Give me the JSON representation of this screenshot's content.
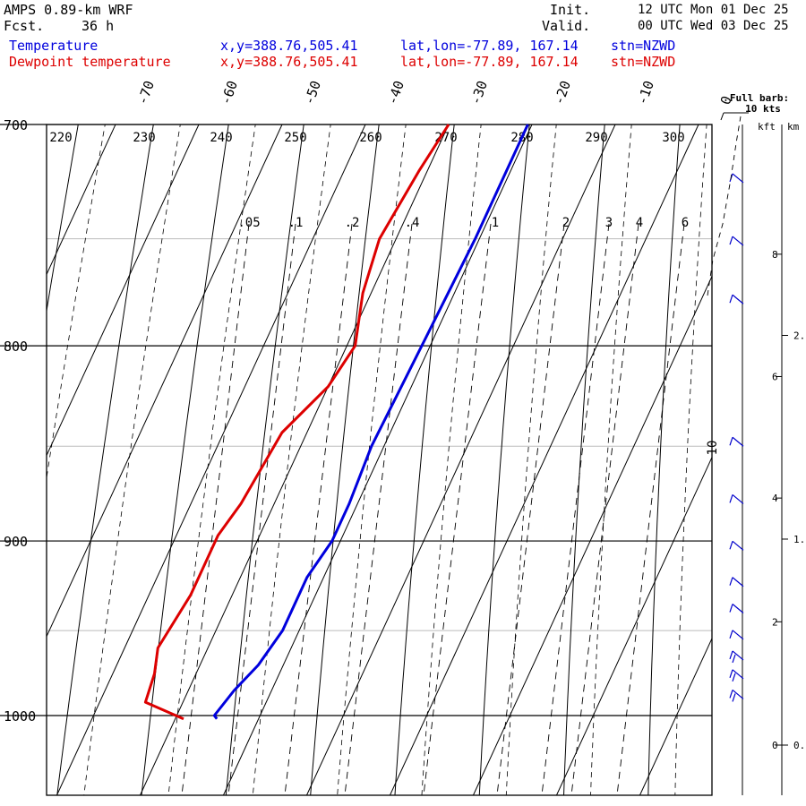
{
  "header": {
    "model": "AMPS 0.89-km WRF",
    "fcst_label": "Fcst.",
    "fcst_value": "36 h",
    "init_label": "Init.",
    "init_value": "12 UTC Mon 01 Dec 25",
    "valid_label": "Valid.",
    "valid_value": "00 UTC Wed 03 Dec 25",
    "location": {
      "xy": "x,y=388.76,505.41",
      "latlon": "lat,lon=-77.89, 167.14",
      "station": "stn=NZWD"
    }
  },
  "chart_data": {
    "type": "line",
    "subtype": "skew-T log-P sounding",
    "pressure_range": [
      700,
      1040
    ],
    "pressure_ticks": [
      700,
      800,
      900,
      1000
    ],
    "log_pressure_axis": true,
    "temperature_ticks": [
      -70,
      -60,
      -50,
      -40,
      -30,
      -20,
      -10,
      0
    ],
    "theta_labels": [
      220,
      230,
      240,
      250,
      260,
      270,
      280,
      290,
      300
    ],
    "mixing_ratio_labels": [
      ".05",
      ".1",
      ".2",
      ".4",
      "1",
      "2",
      "3",
      "4",
      "6"
    ],
    "full_barb_label": "Full barb:",
    "full_barb_value": "10 kts",
    "kft_label": "kft",
    "km_label": "km",
    "kft_ticks": [
      0,
      2,
      4,
      6,
      8
    ],
    "km_ticks": [
      0,
      1,
      2
    ],
    "km_tick_texts": [
      "0.",
      "1.",
      "2."
    ],
    "series": [
      {
        "name": "Temperature",
        "color": "#0000dd",
        "points": [
          {
            "p": 700,
            "t": -20.5
          },
          {
            "p": 750,
            "t": -20.5
          },
          {
            "p": 800,
            "t": -21.0
          },
          {
            "p": 850,
            "t": -21.5
          },
          {
            "p": 880,
            "t": -21.0
          },
          {
            "p": 900,
            "t": -21.0
          },
          {
            "p": 920,
            "t": -22.0
          },
          {
            "p": 950,
            "t": -22.0
          },
          {
            "p": 970,
            "t": -23.0
          },
          {
            "p": 985,
            "t": -24.5
          },
          {
            "p": 1000,
            "t": -25.5
          },
          {
            "p": 1002,
            "t": -25.0
          }
        ]
      },
      {
        "name": "Dewpoint temperature",
        "color": "#dd0000",
        "points": [
          {
            "p": 700,
            "t": -30.0
          },
          {
            "p": 720,
            "t": -31.0
          },
          {
            "p": 750,
            "t": -32.0
          },
          {
            "p": 775,
            "t": -31.0
          },
          {
            "p": 800,
            "t": -29.0
          },
          {
            "p": 820,
            "t": -30.0
          },
          {
            "p": 843,
            "t": -33.0
          },
          {
            "p": 880,
            "t": -34.0
          },
          {
            "p": 897,
            "t": -35.0
          },
          {
            "p": 930,
            "t": -35.0
          },
          {
            "p": 960,
            "t": -36.0
          },
          {
            "p": 975,
            "t": -35.0
          },
          {
            "p": 992,
            "t": -34.5
          },
          {
            "p": 1002,
            "t": -29.0
          }
        ]
      }
    ],
    "wind_barbs": [
      {
        "p": 725,
        "barbs": 1
      },
      {
        "p": 753,
        "barbs": 1
      },
      {
        "p": 780,
        "barbs": 1
      },
      {
        "p": 850,
        "barbs": 1
      },
      {
        "p": 880,
        "barbs": 1
      },
      {
        "p": 905,
        "barbs": 1
      },
      {
        "p": 925,
        "barbs": 1
      },
      {
        "p": 940,
        "barbs": 1
      },
      {
        "p": 955,
        "barbs": 1
      },
      {
        "p": 967,
        "barbs": 2
      },
      {
        "p": 978,
        "barbs": 2
      },
      {
        "p": 990,
        "barbs": 2
      }
    ],
    "hodograph_label": "10"
  }
}
